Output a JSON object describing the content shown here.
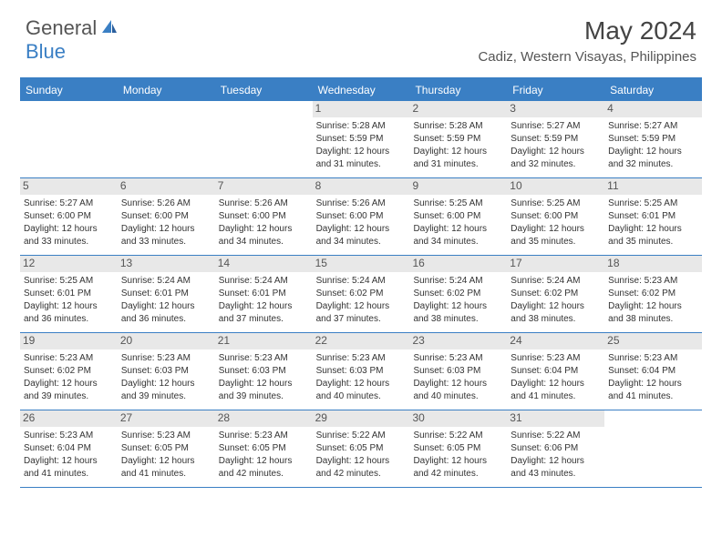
{
  "logo": {
    "part1": "General",
    "part2": "Blue"
  },
  "title": "May 2024",
  "location": "Cadiz, Western Visayas, Philippines",
  "colors": {
    "header_bg": "#3a7fc4",
    "header_text": "#ffffff",
    "day_num_bg": "#e8e8e8",
    "text": "#333333",
    "border": "#3a7fc4"
  },
  "weekdays": [
    "Sunday",
    "Monday",
    "Tuesday",
    "Wednesday",
    "Thursday",
    "Friday",
    "Saturday"
  ],
  "weeks": [
    [
      {
        "num": "",
        "sunrise": "",
        "sunset": "",
        "daylight1": "",
        "daylight2": ""
      },
      {
        "num": "",
        "sunrise": "",
        "sunset": "",
        "daylight1": "",
        "daylight2": ""
      },
      {
        "num": "",
        "sunrise": "",
        "sunset": "",
        "daylight1": "",
        "daylight2": ""
      },
      {
        "num": "1",
        "sunrise": "Sunrise: 5:28 AM",
        "sunset": "Sunset: 5:59 PM",
        "daylight1": "Daylight: 12 hours",
        "daylight2": "and 31 minutes."
      },
      {
        "num": "2",
        "sunrise": "Sunrise: 5:28 AM",
        "sunset": "Sunset: 5:59 PM",
        "daylight1": "Daylight: 12 hours",
        "daylight2": "and 31 minutes."
      },
      {
        "num": "3",
        "sunrise": "Sunrise: 5:27 AM",
        "sunset": "Sunset: 5:59 PM",
        "daylight1": "Daylight: 12 hours",
        "daylight2": "and 32 minutes."
      },
      {
        "num": "4",
        "sunrise": "Sunrise: 5:27 AM",
        "sunset": "Sunset: 5:59 PM",
        "daylight1": "Daylight: 12 hours",
        "daylight2": "and 32 minutes."
      }
    ],
    [
      {
        "num": "5",
        "sunrise": "Sunrise: 5:27 AM",
        "sunset": "Sunset: 6:00 PM",
        "daylight1": "Daylight: 12 hours",
        "daylight2": "and 33 minutes."
      },
      {
        "num": "6",
        "sunrise": "Sunrise: 5:26 AM",
        "sunset": "Sunset: 6:00 PM",
        "daylight1": "Daylight: 12 hours",
        "daylight2": "and 33 minutes."
      },
      {
        "num": "7",
        "sunrise": "Sunrise: 5:26 AM",
        "sunset": "Sunset: 6:00 PM",
        "daylight1": "Daylight: 12 hours",
        "daylight2": "and 34 minutes."
      },
      {
        "num": "8",
        "sunrise": "Sunrise: 5:26 AM",
        "sunset": "Sunset: 6:00 PM",
        "daylight1": "Daylight: 12 hours",
        "daylight2": "and 34 minutes."
      },
      {
        "num": "9",
        "sunrise": "Sunrise: 5:25 AM",
        "sunset": "Sunset: 6:00 PM",
        "daylight1": "Daylight: 12 hours",
        "daylight2": "and 34 minutes."
      },
      {
        "num": "10",
        "sunrise": "Sunrise: 5:25 AM",
        "sunset": "Sunset: 6:00 PM",
        "daylight1": "Daylight: 12 hours",
        "daylight2": "and 35 minutes."
      },
      {
        "num": "11",
        "sunrise": "Sunrise: 5:25 AM",
        "sunset": "Sunset: 6:01 PM",
        "daylight1": "Daylight: 12 hours",
        "daylight2": "and 35 minutes."
      }
    ],
    [
      {
        "num": "12",
        "sunrise": "Sunrise: 5:25 AM",
        "sunset": "Sunset: 6:01 PM",
        "daylight1": "Daylight: 12 hours",
        "daylight2": "and 36 minutes."
      },
      {
        "num": "13",
        "sunrise": "Sunrise: 5:24 AM",
        "sunset": "Sunset: 6:01 PM",
        "daylight1": "Daylight: 12 hours",
        "daylight2": "and 36 minutes."
      },
      {
        "num": "14",
        "sunrise": "Sunrise: 5:24 AM",
        "sunset": "Sunset: 6:01 PM",
        "daylight1": "Daylight: 12 hours",
        "daylight2": "and 37 minutes."
      },
      {
        "num": "15",
        "sunrise": "Sunrise: 5:24 AM",
        "sunset": "Sunset: 6:02 PM",
        "daylight1": "Daylight: 12 hours",
        "daylight2": "and 37 minutes."
      },
      {
        "num": "16",
        "sunrise": "Sunrise: 5:24 AM",
        "sunset": "Sunset: 6:02 PM",
        "daylight1": "Daylight: 12 hours",
        "daylight2": "and 38 minutes."
      },
      {
        "num": "17",
        "sunrise": "Sunrise: 5:24 AM",
        "sunset": "Sunset: 6:02 PM",
        "daylight1": "Daylight: 12 hours",
        "daylight2": "and 38 minutes."
      },
      {
        "num": "18",
        "sunrise": "Sunrise: 5:23 AM",
        "sunset": "Sunset: 6:02 PM",
        "daylight1": "Daylight: 12 hours",
        "daylight2": "and 38 minutes."
      }
    ],
    [
      {
        "num": "19",
        "sunrise": "Sunrise: 5:23 AM",
        "sunset": "Sunset: 6:02 PM",
        "daylight1": "Daylight: 12 hours",
        "daylight2": "and 39 minutes."
      },
      {
        "num": "20",
        "sunrise": "Sunrise: 5:23 AM",
        "sunset": "Sunset: 6:03 PM",
        "daylight1": "Daylight: 12 hours",
        "daylight2": "and 39 minutes."
      },
      {
        "num": "21",
        "sunrise": "Sunrise: 5:23 AM",
        "sunset": "Sunset: 6:03 PM",
        "daylight1": "Daylight: 12 hours",
        "daylight2": "and 39 minutes."
      },
      {
        "num": "22",
        "sunrise": "Sunrise: 5:23 AM",
        "sunset": "Sunset: 6:03 PM",
        "daylight1": "Daylight: 12 hours",
        "daylight2": "and 40 minutes."
      },
      {
        "num": "23",
        "sunrise": "Sunrise: 5:23 AM",
        "sunset": "Sunset: 6:03 PM",
        "daylight1": "Daylight: 12 hours",
        "daylight2": "and 40 minutes."
      },
      {
        "num": "24",
        "sunrise": "Sunrise: 5:23 AM",
        "sunset": "Sunset: 6:04 PM",
        "daylight1": "Daylight: 12 hours",
        "daylight2": "and 41 minutes."
      },
      {
        "num": "25",
        "sunrise": "Sunrise: 5:23 AM",
        "sunset": "Sunset: 6:04 PM",
        "daylight1": "Daylight: 12 hours",
        "daylight2": "and 41 minutes."
      }
    ],
    [
      {
        "num": "26",
        "sunrise": "Sunrise: 5:23 AM",
        "sunset": "Sunset: 6:04 PM",
        "daylight1": "Daylight: 12 hours",
        "daylight2": "and 41 minutes."
      },
      {
        "num": "27",
        "sunrise": "Sunrise: 5:23 AM",
        "sunset": "Sunset: 6:05 PM",
        "daylight1": "Daylight: 12 hours",
        "daylight2": "and 41 minutes."
      },
      {
        "num": "28",
        "sunrise": "Sunrise: 5:23 AM",
        "sunset": "Sunset: 6:05 PM",
        "daylight1": "Daylight: 12 hours",
        "daylight2": "and 42 minutes."
      },
      {
        "num": "29",
        "sunrise": "Sunrise: 5:22 AM",
        "sunset": "Sunset: 6:05 PM",
        "daylight1": "Daylight: 12 hours",
        "daylight2": "and 42 minutes."
      },
      {
        "num": "30",
        "sunrise": "Sunrise: 5:22 AM",
        "sunset": "Sunset: 6:05 PM",
        "daylight1": "Daylight: 12 hours",
        "daylight2": "and 42 minutes."
      },
      {
        "num": "31",
        "sunrise": "Sunrise: 5:22 AM",
        "sunset": "Sunset: 6:06 PM",
        "daylight1": "Daylight: 12 hours",
        "daylight2": "and 43 minutes."
      },
      {
        "num": "",
        "sunrise": "",
        "sunset": "",
        "daylight1": "",
        "daylight2": ""
      }
    ]
  ]
}
